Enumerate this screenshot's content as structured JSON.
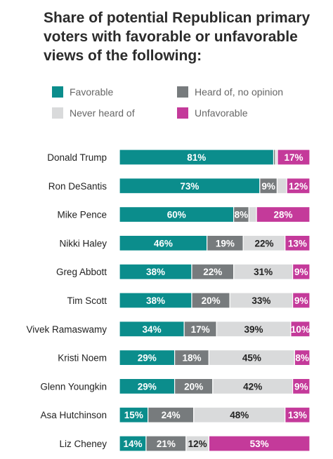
{
  "title": "Share of potential Republican primary voters with favorable or unfavorable views of the following:",
  "colors": {
    "favorable": "#0b8d8c",
    "heard_no_opinion": "#777b7d",
    "never_heard": "#d9dadb",
    "unfavorable": "#c43a9a"
  },
  "legend": [
    {
      "key": "favorable",
      "label": "Favorable"
    },
    {
      "key": "heard_no_opinion",
      "label": "Heard of, no opinion"
    },
    {
      "key": "never_heard",
      "label": "Never heard of"
    },
    {
      "key": "unfavorable",
      "label": "Unfavorable"
    }
  ],
  "chart_data": {
    "type": "bar",
    "orientation": "horizontal",
    "stacked": true,
    "title": "Share of potential Republican primary voters with favorable or unfavorable views of the following:",
    "legend_position": "top",
    "xlim": [
      0,
      100
    ],
    "unit": "%",
    "categories": [
      "Donald Trump",
      "Ron DeSantis",
      "Mike Pence",
      "Nikki Haley",
      "Greg Abbott",
      "Tim Scott",
      "Vivek Ramaswamy",
      "Kristi Noem",
      "Glenn Youngkin",
      "Asa Hutchinson",
      "Liz Cheney"
    ],
    "series": [
      {
        "name": "Favorable",
        "key": "favorable",
        "values": [
          81,
          73,
          60,
          46,
          38,
          38,
          34,
          29,
          29,
          15,
          14
        ],
        "labels": [
          "81%",
          "73%",
          "60%",
          "46%",
          "38%",
          "38%",
          "34%",
          "29%",
          "29%",
          "15%",
          "14%"
        ]
      },
      {
        "name": "Heard of, no opinion",
        "key": "heard_no_opinion",
        "values": [
          1,
          9,
          8,
          19,
          22,
          20,
          17,
          18,
          20,
          24,
          21
        ],
        "labels": [
          "",
          "9%",
          "8%",
          "19%",
          "22%",
          "20%",
          "17%",
          "18%",
          "20%",
          "24%",
          "21%"
        ]
      },
      {
        "name": "Never heard of",
        "key": "never_heard",
        "values": [
          1,
          5,
          4,
          22,
          31,
          33,
          39,
          45,
          42,
          48,
          12
        ],
        "labels": [
          "",
          "",
          "",
          "22%",
          "31%",
          "33%",
          "39%",
          "45%",
          "42%",
          "48%",
          "12%"
        ]
      },
      {
        "name": "Unfavorable",
        "key": "unfavorable",
        "values": [
          17,
          12,
          28,
          13,
          9,
          9,
          10,
          8,
          9,
          13,
          53
        ],
        "labels": [
          "17%",
          "12%",
          "28%",
          "13%",
          "9%",
          "9%",
          "10%",
          "8%",
          "9%",
          "13%",
          "53%"
        ]
      }
    ]
  }
}
